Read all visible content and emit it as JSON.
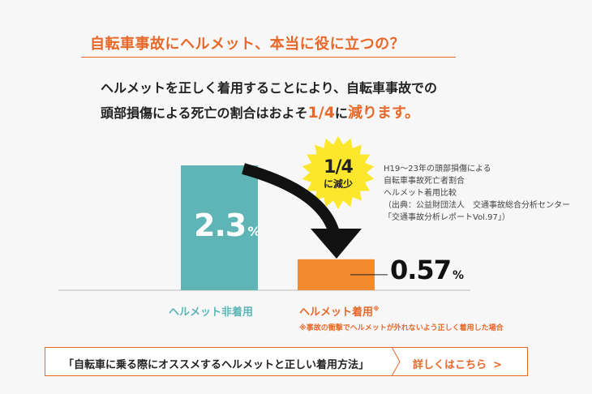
{
  "headline": "自転車事故にヘルメット、本当に役に立つの？",
  "lead": {
    "line1": "ヘルメットを正しく着用することにより、自転車事故での",
    "line2_prefix": "頭部損傷による死亡の割合はおよそ",
    "line2_fraction": "1/4",
    "line2_mid": "に",
    "line2_emphasis": "減ります。"
  },
  "badge": {
    "value": "1/4",
    "label": "に減少"
  },
  "source_note": [
    "H19～23年の頭部損傷による",
    "自転車事故死亡者割合",
    "ヘルメット着用比較",
    "（出典：公益財団法人　交通事故総合分析センター",
    "「交通事故分析レポートVol.97」）"
  ],
  "chart_data": {
    "type": "bar",
    "categories": [
      "ヘルメット非着用",
      "ヘルメット着用※"
    ],
    "values": [
      2.3,
      0.57
    ],
    "value_labels": [
      "2.3",
      "0.57"
    ],
    "unit": "%",
    "colors": [
      "#5fb5b6",
      "#f28a2f"
    ],
    "category_label_colors": [
      "#5fb5b6",
      "#e8682a"
    ],
    "ylim": [
      0,
      2.3
    ],
    "grid": false
  },
  "footnote": "※事故の衝撃でヘルメットが外れないよう正しく着用した場合",
  "cta": {
    "text": "「自転車に乗る際にオススメするヘルメットと正しい着用方法」",
    "link": "詳しくはこちら",
    "link_chevron": ">"
  },
  "colors": {
    "accent": "#e8682a",
    "badge": "#fce72d"
  }
}
